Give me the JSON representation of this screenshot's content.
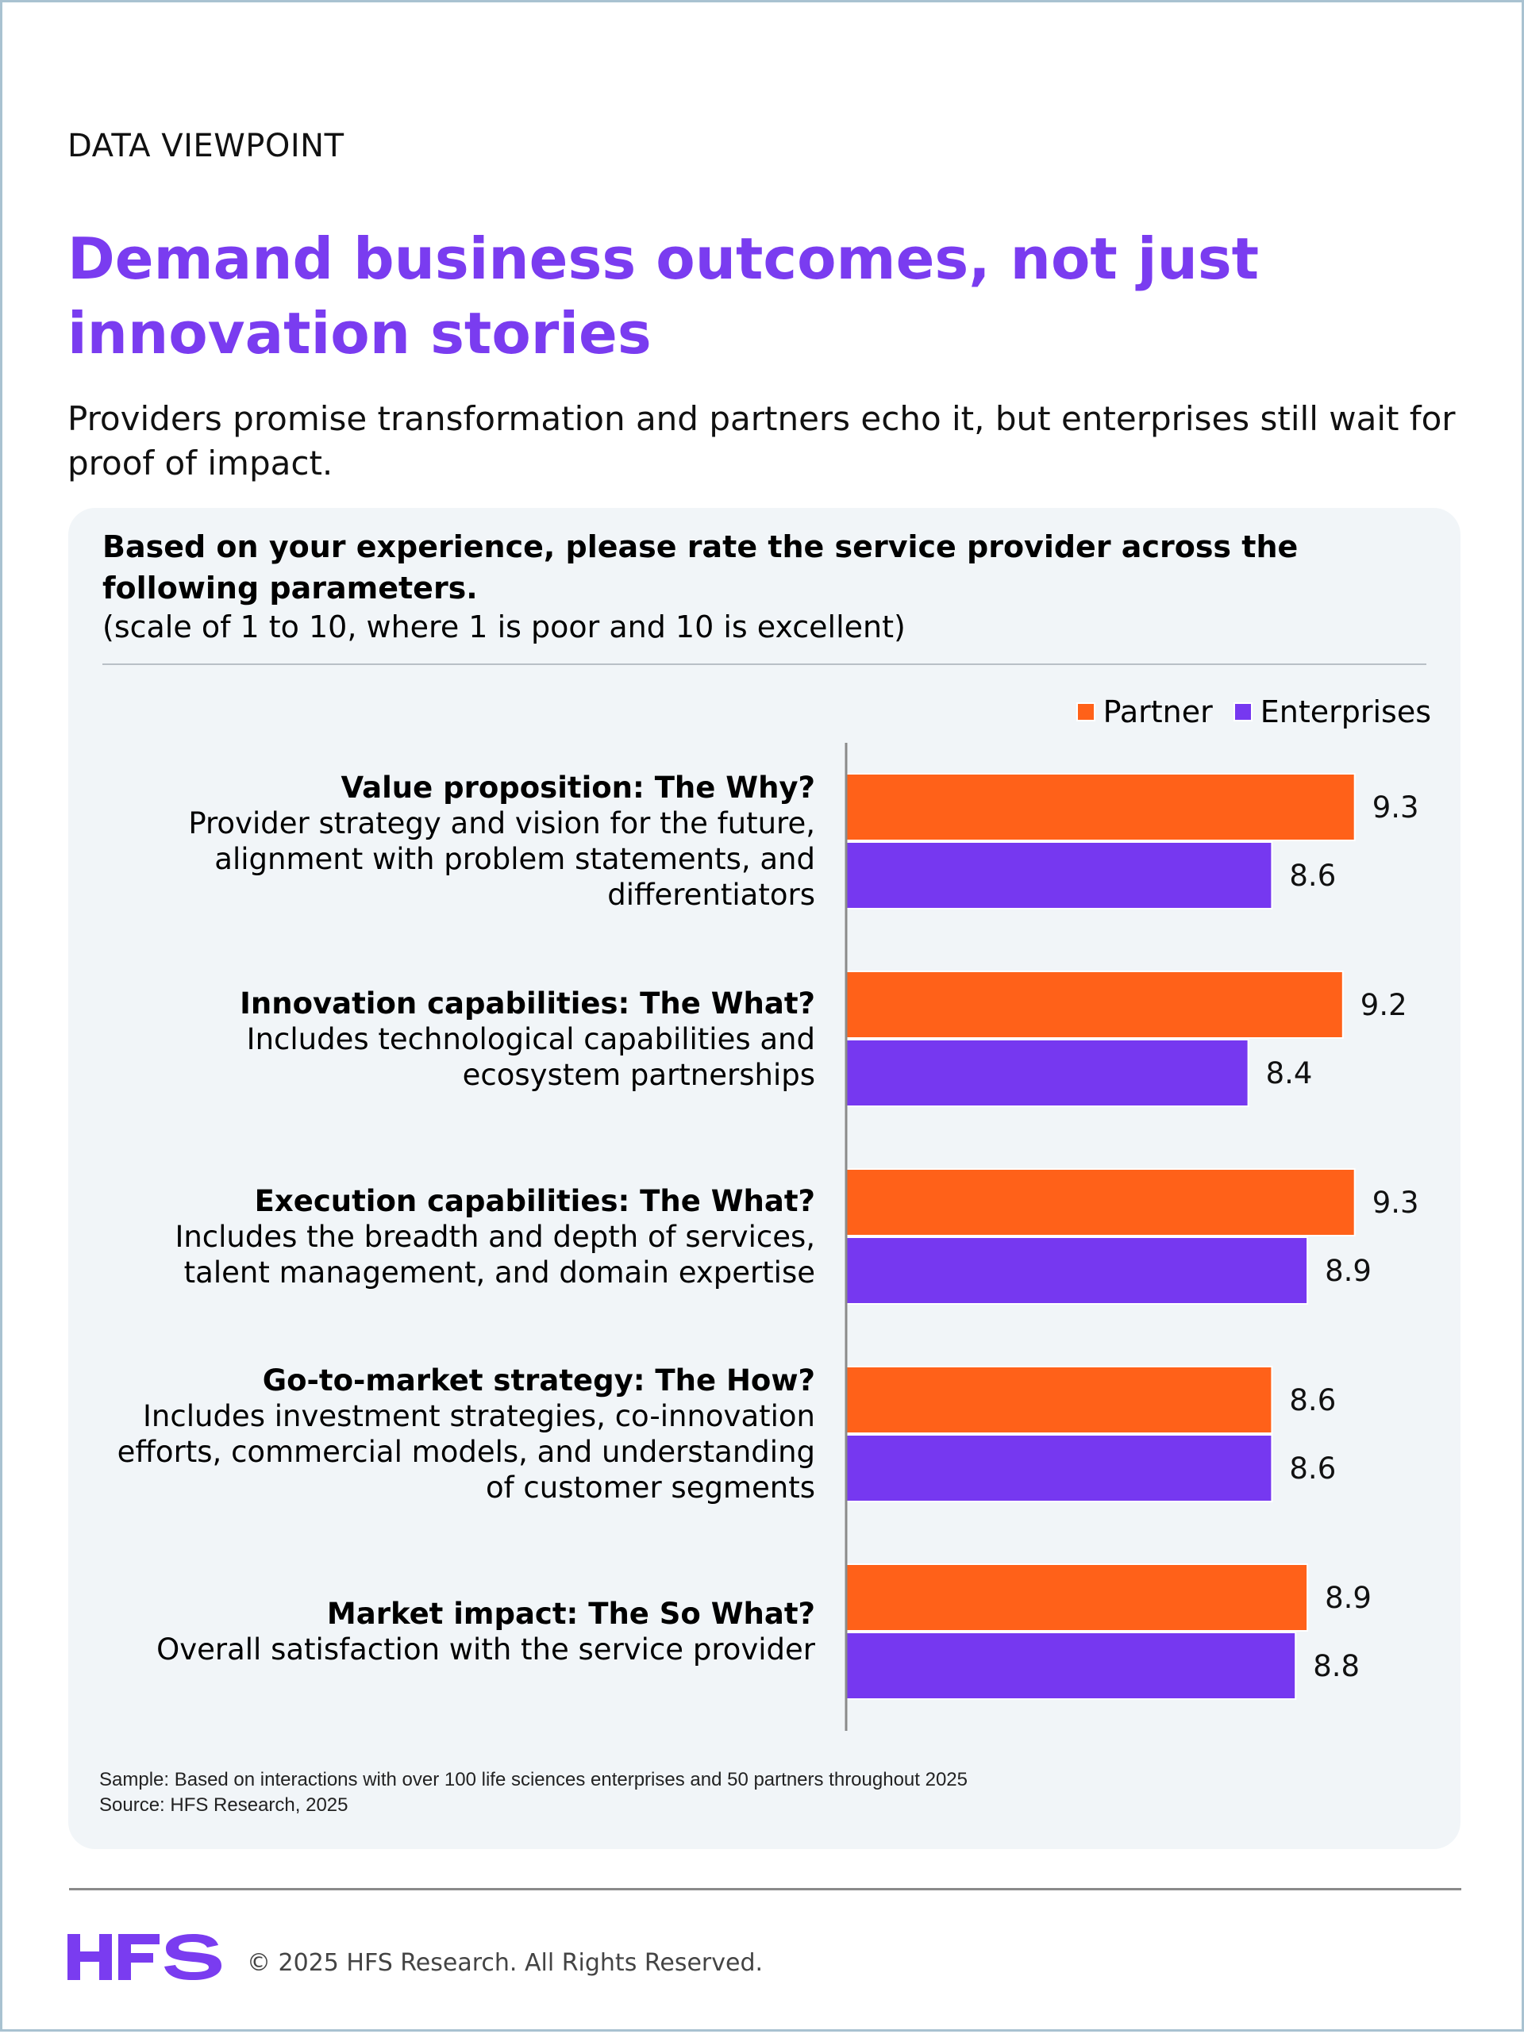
{
  "header": {
    "eyebrow": "DATA VIEWPOINT",
    "title": "Demand business outcomes, not just innovation stories",
    "subtitle": "Providers promise transformation and partners echo it, but enterprises still wait for proof of impact."
  },
  "card": {
    "question": "Based on your experience, please rate the service provider across the following parameters.",
    "scale_note": "(scale of 1 to 10, where 1 is poor and 10 is excellent)",
    "sample_note": "Sample: Based on interactions with over 100 life sciences enterprises and 50 partners throughout 2025",
    "source_note": "Source: HFS Research, 2025"
  },
  "colors": {
    "partner": "#ff6119",
    "enterprises": "#7638f0",
    "accent": "#7a3cf0"
  },
  "chart_data": {
    "type": "bar",
    "orientation": "horizontal",
    "title": "",
    "xlabel": "",
    "ylabel": "",
    "xlim": [
      5,
      10
    ],
    "grid": false,
    "legend_position": "top-right",
    "categories": [
      {
        "title": "Value proposition: The Why?",
        "description": "Provider strategy and vision for the future,\nalignment with problem statements, and\ndifferentiators"
      },
      {
        "title": "Innovation capabilities: The What?",
        "description": "Includes technological capabilities and\necosystem partnerships"
      },
      {
        "title": "Execution capabilities: The What?",
        "description": "Includes the breadth and depth of services,\ntalent management, and domain expertise"
      },
      {
        "title": "Go-to-market strategy: The How?",
        "description": "Includes investment strategies, co-innovation\nefforts, commercial models, and understanding\nof customer segments"
      },
      {
        "title": "Market impact: The So What?",
        "description": "Overall satisfaction with the service provider"
      }
    ],
    "series": [
      {
        "name": "Partner",
        "color": "#ff6119",
        "values": [
          9.3,
          9.2,
          9.3,
          8.6,
          8.9
        ]
      },
      {
        "name": "Enterprises",
        "color": "#7638f0",
        "values": [
          8.6,
          8.4,
          8.9,
          8.6,
          8.8
        ]
      }
    ]
  },
  "footer": {
    "logo_text": "HFS",
    "copyright": "© 2025 HFS Research. All Rights Reserved."
  }
}
